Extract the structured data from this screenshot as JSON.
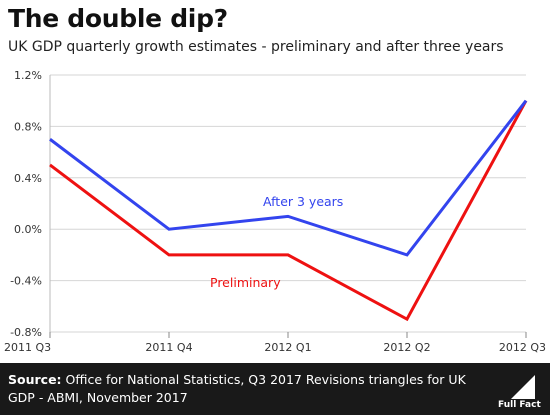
{
  "header": {
    "title": "The double dip?",
    "subtitle": "UK GDP quarterly growth estimates - preliminary and after three years"
  },
  "footer": {
    "source_label": "Source:",
    "source_text": "Office for National Statistics, Q3 2017 Revisions triangles for UK GDP - ABMI, November 2017",
    "logo_text": "Full Fact"
  },
  "chart_data": {
    "type": "line",
    "title": "The double dip?",
    "subtitle": "UK GDP quarterly growth estimates - preliminary and after three years",
    "categories": [
      "2011 Q3",
      "2011 Q4",
      "2012 Q1",
      "2012 Q2",
      "2012 Q3"
    ],
    "ylim": [
      -0.8,
      1.2
    ],
    "yticks": [
      -0.8,
      -0.4,
      0.0,
      0.4,
      0.8,
      1.2
    ],
    "ytick_labels": [
      "-0.8%",
      "-0.4%",
      "0.0%",
      "0.4%",
      "0.8%",
      "1.2%"
    ],
    "grid": "horizontal",
    "series": [
      {
        "name": "After 3 years",
        "color": "#3344ee",
        "values": [
          0.7,
          0.0,
          0.1,
          -0.2,
          1.0
        ]
      },
      {
        "name": "Preliminary",
        "color": "#ee1111",
        "values": [
          0.5,
          -0.2,
          -0.2,
          -0.7,
          1.0
        ]
      }
    ]
  }
}
